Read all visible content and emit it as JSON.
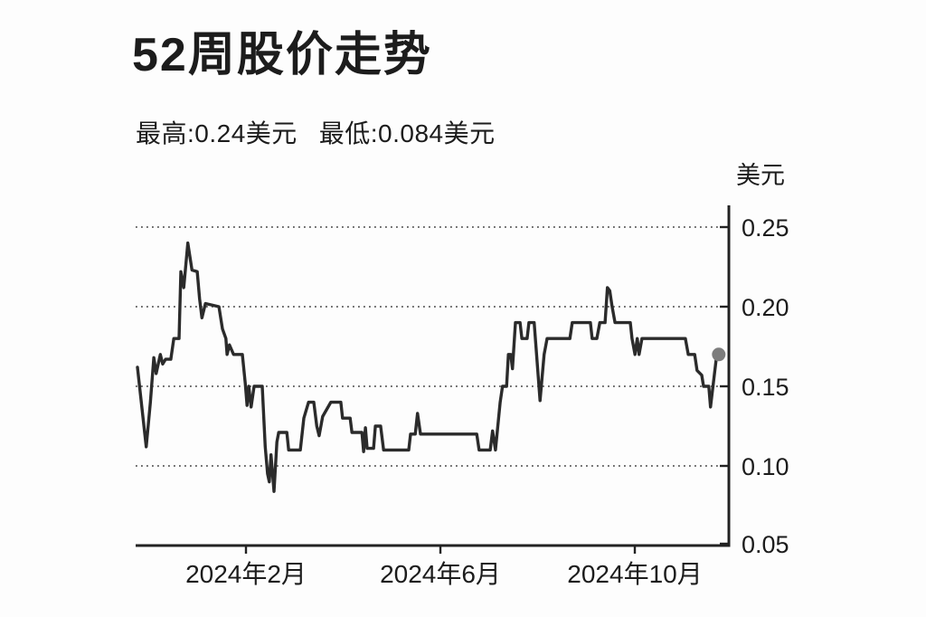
{
  "colors": {
    "background": "#fdfdfd",
    "text": "#1c1c1c",
    "line": "#2b2b2b",
    "end_dot": "#7d7d7d",
    "grid": "#3d3d3d"
  },
  "chart_data": {
    "type": "line",
    "title": "52周股价走势",
    "stats": {
      "high_text": "最高:0.24美元",
      "low_text": "最低:0.084美元",
      "high_value": 0.24,
      "low_value": 0.084
    },
    "ylabel": "美元",
    "ylim": [
      0.05,
      0.25
    ],
    "ytick_labels": [
      "0.25",
      "0.20",
      "0.15",
      "0.10",
      "0.05"
    ],
    "ytick_values": [
      0.25,
      0.2,
      0.15,
      0.1,
      0.05
    ],
    "xtick_labels": [
      "2024年2月",
      "2024年6月",
      "2024年10月"
    ],
    "grid": "dotted horizontal lines at 0.10, 0.15, 0.20, 0.25",
    "legend": "none",
    "series": [
      {
        "name": "52周股价",
        "note": "points are [x_fraction_of_52_weeks, price_usd]",
        "points": [
          [
            0.0,
            0.162
          ],
          [
            0.015,
            0.112
          ],
          [
            0.022,
            0.14
          ],
          [
            0.028,
            0.168
          ],
          [
            0.032,
            0.158
          ],
          [
            0.039,
            0.17
          ],
          [
            0.043,
            0.164
          ],
          [
            0.048,
            0.167
          ],
          [
            0.057,
            0.167
          ],
          [
            0.062,
            0.18
          ],
          [
            0.071,
            0.18
          ],
          [
            0.074,
            0.222
          ],
          [
            0.079,
            0.212
          ],
          [
            0.086,
            0.24
          ],
          [
            0.093,
            0.223
          ],
          [
            0.102,
            0.222
          ],
          [
            0.106,
            0.205
          ],
          [
            0.11,
            0.193
          ],
          [
            0.116,
            0.202
          ],
          [
            0.139,
            0.2
          ],
          [
            0.145,
            0.186
          ],
          [
            0.151,
            0.18
          ],
          [
            0.153,
            0.17
          ],
          [
            0.157,
            0.176
          ],
          [
            0.164,
            0.17
          ],
          [
            0.179,
            0.17
          ],
          [
            0.184,
            0.152
          ],
          [
            0.187,
            0.138
          ],
          [
            0.19,
            0.15
          ],
          [
            0.194,
            0.137
          ],
          [
            0.199,
            0.15
          ],
          [
            0.213,
            0.15
          ],
          [
            0.218,
            0.112
          ],
          [
            0.222,
            0.095
          ],
          [
            0.225,
            0.09
          ],
          [
            0.228,
            0.107
          ],
          [
            0.233,
            0.084
          ],
          [
            0.238,
            0.115
          ],
          [
            0.241,
            0.121
          ],
          [
            0.255,
            0.121
          ],
          [
            0.258,
            0.11
          ],
          [
            0.278,
            0.11
          ],
          [
            0.284,
            0.13
          ],
          [
            0.292,
            0.14
          ],
          [
            0.301,
            0.14
          ],
          [
            0.306,
            0.125
          ],
          [
            0.31,
            0.119
          ],
          [
            0.316,
            0.131
          ],
          [
            0.33,
            0.14
          ],
          [
            0.347,
            0.14
          ],
          [
            0.35,
            0.13
          ],
          [
            0.363,
            0.13
          ],
          [
            0.366,
            0.121
          ],
          [
            0.383,
            0.121
          ],
          [
            0.386,
            0.109
          ],
          [
            0.389,
            0.124
          ],
          [
            0.392,
            0.111
          ],
          [
            0.403,
            0.111
          ],
          [
            0.406,
            0.125
          ],
          [
            0.415,
            0.125
          ],
          [
            0.42,
            0.11
          ],
          [
            0.463,
            0.11
          ],
          [
            0.466,
            0.12
          ],
          [
            0.474,
            0.12
          ],
          [
            0.478,
            0.133
          ],
          [
            0.483,
            0.12
          ],
          [
            0.579,
            0.12
          ],
          [
            0.583,
            0.11
          ],
          [
            0.602,
            0.11
          ],
          [
            0.606,
            0.122
          ],
          [
            0.611,
            0.11
          ],
          [
            0.619,
            0.14
          ],
          [
            0.623,
            0.15
          ],
          [
            0.63,
            0.15
          ],
          [
            0.633,
            0.17
          ],
          [
            0.637,
            0.17
          ],
          [
            0.64,
            0.161
          ],
          [
            0.645,
            0.19
          ],
          [
            0.653,
            0.19
          ],
          [
            0.656,
            0.18
          ],
          [
            0.665,
            0.18
          ],
          [
            0.668,
            0.19
          ],
          [
            0.677,
            0.19
          ],
          [
            0.687,
            0.141
          ],
          [
            0.694,
            0.17
          ],
          [
            0.699,
            0.18
          ],
          [
            0.738,
            0.18
          ],
          [
            0.742,
            0.19
          ],
          [
            0.773,
            0.19
          ],
          [
            0.776,
            0.18
          ],
          [
            0.784,
            0.18
          ],
          [
            0.789,
            0.19
          ],
          [
            0.798,
            0.19
          ],
          [
            0.802,
            0.212
          ],
          [
            0.806,
            0.21
          ],
          [
            0.81,
            0.2
          ],
          [
            0.815,
            0.19
          ],
          [
            0.841,
            0.19
          ],
          [
            0.844,
            0.18
          ],
          [
            0.849,
            0.17
          ],
          [
            0.853,
            0.18
          ],
          [
            0.856,
            0.17
          ],
          [
            0.861,
            0.18
          ],
          [
            0.935,
            0.18
          ],
          [
            0.94,
            0.17
          ],
          [
            0.951,
            0.17
          ],
          [
            0.955,
            0.16
          ],
          [
            0.963,
            0.157
          ],
          [
            0.966,
            0.15
          ],
          [
            0.975,
            0.15
          ],
          [
            0.978,
            0.137
          ],
          [
            0.988,
            0.168
          ],
          [
            0.992,
            0.17
          ]
        ]
      }
    ],
    "end_marker": {
      "x_frac": 0.992,
      "price": 0.17
    }
  }
}
